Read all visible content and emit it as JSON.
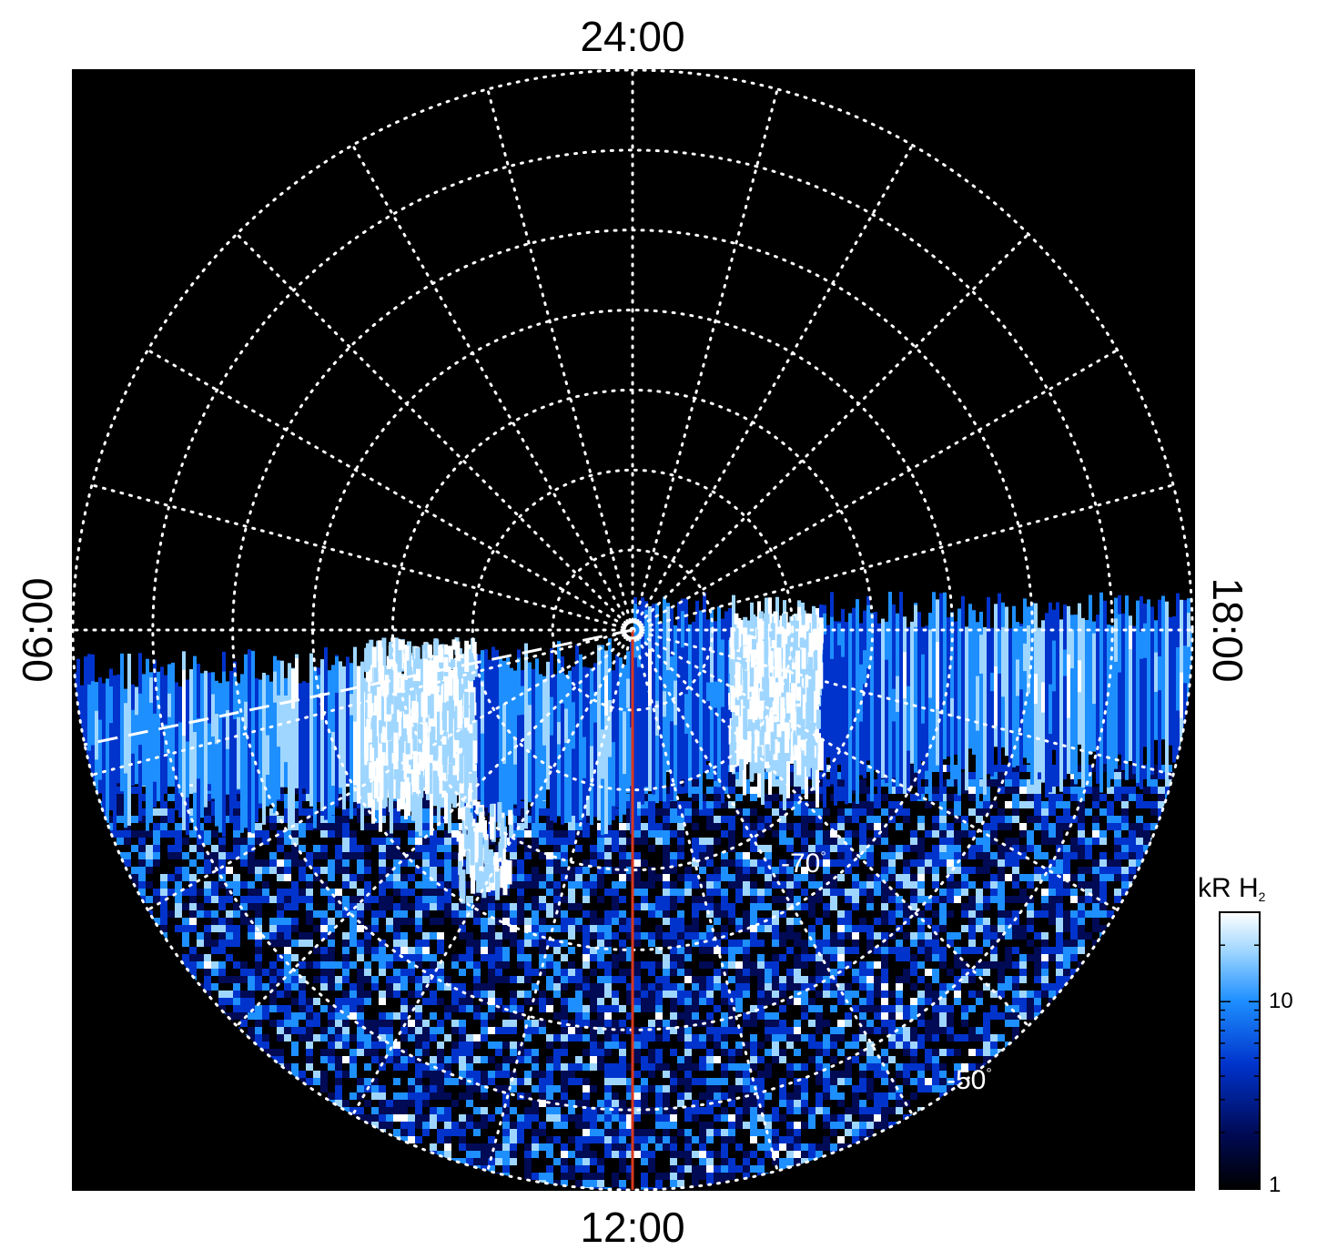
{
  "projection": {
    "type": "polar-stereographic",
    "hemisphere": "south",
    "local_time_labels": {
      "top": "24:00",
      "bottom": "12:00",
      "left": "06:00",
      "right": "18:00"
    },
    "latitude_circles_deg": [
      -80,
      -70,
      -60,
      -50,
      -40,
      -30,
      -20
    ],
    "latitude_labels": [
      {
        "text": "-70",
        "suffix": "°"
      },
      {
        "text": "-50",
        "suffix": "°"
      }
    ],
    "meridian_hours": [
      0,
      1,
      2,
      3,
      4,
      5,
      6,
      7,
      8,
      9,
      10,
      11,
      12,
      13,
      14,
      15,
      16,
      17,
      18,
      19,
      20,
      21,
      22,
      23
    ],
    "grid_color": "#ffffff",
    "background": "#000000",
    "noon_meridian_color": "#d9381e"
  },
  "colorbar": {
    "title": "kR H",
    "title_subscript": "2",
    "scale": "log",
    "range": [
      1,
      30
    ],
    "ticks": [
      {
        "value": 1,
        "label": "1"
      },
      {
        "value": 10,
        "label": "10"
      }
    ],
    "colors": [
      "#000000",
      "#000a55",
      "#0033cc",
      "#1e8fff",
      "#9fd6ff",
      "#ffffff"
    ]
  }
}
